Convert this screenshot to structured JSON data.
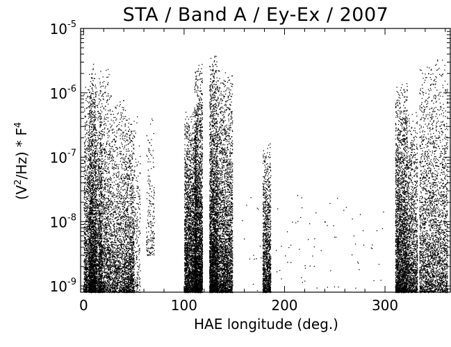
{
  "chart_data": {
    "type": "scatter",
    "title": "STA / Band A / Ey-Ex / 2007",
    "xlabel": "HAE longitude (deg.)",
    "ylabel_parts": {
      "open": "(V",
      "sup1": "2",
      "mid": "/Hz) * F",
      "sup2": "4"
    },
    "xlim": [
      -3,
      365
    ],
    "ylim": [
      8e-10,
      1e-05
    ],
    "yscale": "log",
    "grid": false,
    "x_ticks": [
      {
        "value": 0,
        "label": "0"
      },
      {
        "value": 100,
        "label": "100"
      },
      {
        "value": 200,
        "label": "200"
      },
      {
        "value": 300,
        "label": "300"
      }
    ],
    "y_ticks": [
      {
        "value": 1e-09,
        "base": "10",
        "exp": "-9"
      },
      {
        "value": 1e-08,
        "base": "10",
        "exp": "-8"
      },
      {
        "value": 1e-07,
        "base": "10",
        "exp": "-7"
      },
      {
        "value": 1e-06,
        "base": "10",
        "exp": "-6"
      },
      {
        "value": 1e-05,
        "base": "10",
        "exp": "-5"
      }
    ],
    "point_color": "#000000",
    "clusters": [
      {
        "x_range": [
          0,
          18
        ],
        "y_range": [
          8e-10,
          1.5e-06
        ],
        "density": "high"
      },
      {
        "x_range": [
          5,
          12
        ],
        "y_range": [
          8e-10,
          3e-06
        ],
        "density": "medium"
      },
      {
        "x_range": [
          15,
          26
        ],
        "y_range": [
          8e-10,
          2.5e-06
        ],
        "density": "medium"
      },
      {
        "x_range": [
          26,
          40
        ],
        "y_range": [
          8e-10,
          1e-06
        ],
        "density": "medium"
      },
      {
        "x_range": [
          40,
          50
        ],
        "y_range": [
          8e-10,
          6e-07
        ],
        "density": "medium"
      },
      {
        "x_range": [
          50,
          56
        ],
        "y_range": [
          8e-10,
          5e-07
        ],
        "density": "low"
      },
      {
        "x_range": [
          62,
          70
        ],
        "y_range": [
          3e-09,
          5e-07
        ],
        "density": "low"
      },
      {
        "x_range": [
          100,
          112
        ],
        "y_range": [
          8e-10,
          6e-07
        ],
        "density": "high"
      },
      {
        "x_range": [
          110,
          118
        ],
        "y_range": [
          8e-10,
          3e-06
        ],
        "density": "high"
      },
      {
        "x_range": [
          125,
          133
        ],
        "y_range": [
          8e-10,
          4e-06
        ],
        "density": "high"
      },
      {
        "x_range": [
          133,
          148
        ],
        "y_range": [
          8e-10,
          2.5e-06
        ],
        "density": "high"
      },
      {
        "x_range": [
          178,
          186
        ],
        "y_range": [
          8e-10,
          1.8e-07
        ],
        "density": "medium"
      },
      {
        "x_range": [
          310,
          322
        ],
        "y_range": [
          8e-10,
          1.5e-06
        ],
        "density": "high"
      },
      {
        "x_range": [
          322,
          332
        ],
        "y_range": [
          8e-10,
          6e-07
        ],
        "density": "medium"
      },
      {
        "x_range": [
          334,
          362
        ],
        "y_range": [
          8e-10,
          3.5e-06
        ],
        "density": "high"
      }
    ],
    "sparse_x_range": [
      150,
      300
    ],
    "sparse_y_range": [
      8e-10,
      3e-08
    ]
  }
}
